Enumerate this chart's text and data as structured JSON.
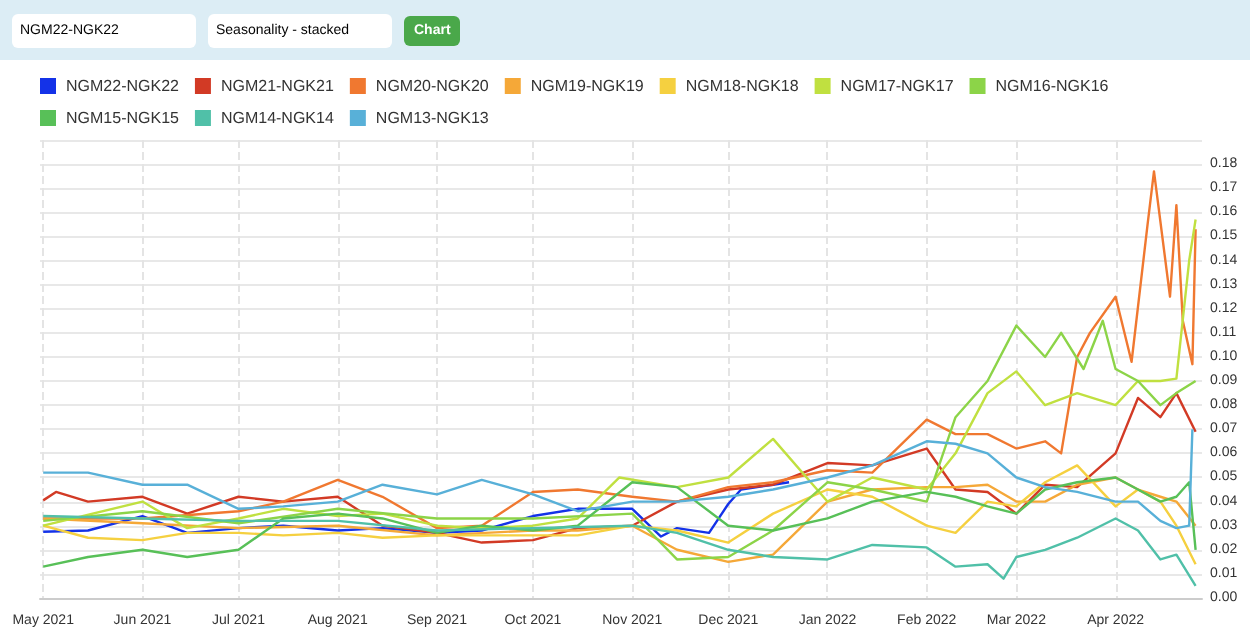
{
  "chart_data": {
    "type": "line",
    "annotations": [
      "NGM22-NGK22",
      "Seasonality - stacked",
      "Chart"
    ],
    "xlim": [
      "2021-04-30",
      "2022-04-28"
    ],
    "xticks": [
      {
        "value": "2021-05-01",
        "label": "May 2021"
      },
      {
        "value": "2021-06-01",
        "label": "Jun 2021"
      },
      {
        "value": "2021-07-01",
        "label": "Jul 2021"
      },
      {
        "value": "2021-08-01",
        "label": "Aug 2021"
      },
      {
        "value": "2021-09-01",
        "label": "Sep 2021"
      },
      {
        "value": "2021-10-01",
        "label": "Oct 2021"
      },
      {
        "value": "2021-11-01",
        "label": "Nov 2021"
      },
      {
        "value": "2021-12-01",
        "label": "Dec 2021"
      },
      {
        "value": "2022-01-01",
        "label": "Jan 2022"
      },
      {
        "value": "2022-02-01",
        "label": "Feb 2022"
      },
      {
        "value": "2022-03-01",
        "label": "Mar 2022"
      },
      {
        "value": "2022-04-01",
        "label": "Apr 2022"
      }
    ],
    "ylim": [
      0,
      0.19
    ],
    "yticks": [
      {
        "value": 0,
        "label": "0.00"
      },
      {
        "value": 0.01,
        "label": "0.01"
      },
      {
        "value": 0.02,
        "label": "0.02"
      },
      {
        "value": 0.03,
        "label": "0.03"
      },
      {
        "value": 0.04,
        "label": "0.04"
      },
      {
        "value": 0.05,
        "label": "0.05"
      },
      {
        "value": 0.06,
        "label": "0.06"
      },
      {
        "value": 0.07,
        "label": "0.07"
      },
      {
        "value": 0.08,
        "label": "0.08"
      },
      {
        "value": 0.09,
        "label": "0.09"
      },
      {
        "value": 0.1,
        "label": "0.10"
      },
      {
        "value": 0.11,
        "label": "0.11"
      },
      {
        "value": 0.12,
        "label": "0.12"
      },
      {
        "value": 0.13,
        "label": "0.13"
      },
      {
        "value": 0.14,
        "label": "0.14"
      },
      {
        "value": 0.15,
        "label": "0.15"
      },
      {
        "value": 0.16,
        "label": "0.16"
      },
      {
        "value": 0.17,
        "label": "0.17"
      },
      {
        "value": 0.18,
        "label": "0.18"
      },
      {
        "value": 0.19,
        "label": null
      }
    ],
    "grid": true,
    "legend": "top",
    "marker": "none",
    "series": [
      {
        "name": "NGM22-NGK22",
        "color": "#1432e8",
        "x": [
          "2021-05-01",
          "2021-05-15",
          "2021-06-01",
          "2021-06-15",
          "2021-07-01",
          "2021-07-15",
          "2021-08-01",
          "2021-08-15",
          "2021-09-01",
          "2021-09-15",
          "2021-10-01",
          "2021-10-15",
          "2021-11-01",
          "2021-11-10",
          "2021-11-15",
          "2021-11-25",
          "2021-12-01",
          "2021-12-05",
          "2021-12-15",
          "2021-12-20"
        ],
        "values": [
          0.0275,
          0.028,
          0.034,
          0.027,
          0.029,
          0.03,
          0.028,
          0.029,
          0.027,
          0.028,
          0.034,
          0.037,
          0.037,
          0.0255,
          0.029,
          0.027,
          0.039,
          0.045,
          0.047,
          0.048
        ]
      },
      {
        "name": "NGM21-NGK21",
        "color": "#d23a25",
        "x": [
          "2021-05-01",
          "2021-05-05",
          "2021-05-15",
          "2021-06-01",
          "2021-06-15",
          "2021-07-01",
          "2021-07-15",
          "2021-08-01",
          "2021-08-15",
          "2021-09-01",
          "2021-09-15",
          "2021-10-01",
          "2021-10-15",
          "2021-11-01",
          "2021-11-15",
          "2021-12-01",
          "2021-12-15",
          "2022-01-01",
          "2022-01-15",
          "2022-02-01",
          "2022-02-10",
          "2022-02-20",
          "2022-03-01",
          "2022-03-10",
          "2022-03-20",
          "2022-04-01",
          "2022-04-08",
          "2022-04-15",
          "2022-04-20",
          "2022-04-26"
        ],
        "values": [
          0.0405,
          0.044,
          0.04,
          0.042,
          0.035,
          0.042,
          0.04,
          0.042,
          0.03,
          0.027,
          0.023,
          0.024,
          0.029,
          0.03,
          0.04,
          0.045,
          0.047,
          0.056,
          0.055,
          0.062,
          0.045,
          0.044,
          0.035,
          0.047,
          0.046,
          0.06,
          0.083,
          0.075,
          0.085,
          0.069
        ]
      },
      {
        "name": "NGM20-NGK20",
        "color": "#f07830",
        "x": [
          "2021-05-01",
          "2021-06-01",
          "2021-07-01",
          "2021-07-15",
          "2021-08-01",
          "2021-08-15",
          "2021-09-01",
          "2021-09-15",
          "2021-10-01",
          "2021-10-15",
          "2021-11-01",
          "2021-11-15",
          "2021-12-01",
          "2021-12-15",
          "2022-01-01",
          "2022-01-15",
          "2022-02-01",
          "2022-02-10",
          "2022-02-20",
          "2022-03-01",
          "2022-03-10",
          "2022-03-15",
          "2022-03-20",
          "2022-03-24",
          "2022-04-01",
          "2022-04-06",
          "2022-04-11",
          "2022-04-13",
          "2022-04-18",
          "2022-04-20",
          "2022-04-22",
          "2022-04-25",
          "2022-04-26"
        ],
        "values": [
          0.033,
          0.033,
          0.036,
          0.04,
          0.049,
          0.042,
          0.029,
          0.03,
          0.044,
          0.045,
          0.042,
          0.04,
          0.046,
          0.048,
          0.053,
          0.052,
          0.074,
          0.068,
          0.068,
          0.062,
          0.065,
          0.06,
          0.1,
          0.11,
          0.125,
          0.098,
          0.155,
          0.177,
          0.125,
          0.163,
          0.115,
          0.097,
          0.153
        ]
      },
      {
        "name": "NGM19-NGK19",
        "color": "#f5a838",
        "x": [
          "2021-05-01",
          "2021-06-01",
          "2021-07-01",
          "2021-08-01",
          "2021-09-01",
          "2021-10-01",
          "2021-10-15",
          "2021-11-01",
          "2021-11-15",
          "2021-12-01",
          "2021-12-15",
          "2022-01-01",
          "2022-01-15",
          "2022-02-01",
          "2022-02-10",
          "2022-02-20",
          "2022-03-01",
          "2022-03-10",
          "2022-03-20",
          "2022-04-01",
          "2022-04-08",
          "2022-04-15",
          "2022-04-20",
          "2022-04-26"
        ],
        "values": [
          0.033,
          0.031,
          0.029,
          0.03,
          0.026,
          0.028,
          0.028,
          0.03,
          0.02,
          0.015,
          0.018,
          0.04,
          0.045,
          0.046,
          0.046,
          0.047,
          0.04,
          0.04,
          0.047,
          0.05,
          0.045,
          0.042,
          0.04,
          0.03
        ]
      },
      {
        "name": "NGM18-NGK18",
        "color": "#f5d040",
        "x": [
          "2021-05-01",
          "2021-05-15",
          "2021-06-01",
          "2021-06-15",
          "2021-07-01",
          "2021-07-15",
          "2021-08-01",
          "2021-08-15",
          "2021-09-01",
          "2021-09-15",
          "2021-10-01",
          "2021-10-15",
          "2021-11-01",
          "2021-11-15",
          "2021-12-01",
          "2021-12-15",
          "2022-01-01",
          "2022-01-15",
          "2022-02-01",
          "2022-02-10",
          "2022-02-20",
          "2022-03-01",
          "2022-03-10",
          "2022-03-20",
          "2022-04-01",
          "2022-04-08",
          "2022-04-15",
          "2022-04-20",
          "2022-04-26"
        ],
        "values": [
          0.03,
          0.025,
          0.024,
          0.027,
          0.027,
          0.026,
          0.027,
          0.025,
          0.026,
          0.026,
          0.026,
          0.026,
          0.03,
          0.028,
          0.023,
          0.035,
          0.045,
          0.042,
          0.03,
          0.027,
          0.04,
          0.038,
          0.048,
          0.055,
          0.038,
          0.045,
          0.04,
          0.03,
          0.014
        ]
      },
      {
        "name": "NGM17-NGK17",
        "color": "#c0e040",
        "x": [
          "2021-05-01",
          "2021-06-01",
          "2021-06-15",
          "2021-07-01",
          "2021-07-15",
          "2021-08-01",
          "2021-08-15",
          "2021-09-01",
          "2021-09-15",
          "2021-10-01",
          "2021-10-15",
          "2021-10-28",
          "2021-11-15",
          "2021-12-01",
          "2021-12-15",
          "2022-01-01",
          "2022-01-15",
          "2022-02-01",
          "2022-02-10",
          "2022-02-20",
          "2022-03-01",
          "2022-03-10",
          "2022-03-20",
          "2022-04-01",
          "2022-04-08",
          "2022-04-15",
          "2022-04-20",
          "2022-04-24",
          "2022-04-26"
        ],
        "values": [
          0.03,
          0.04,
          0.029,
          0.033,
          0.037,
          0.034,
          0.035,
          0.03,
          0.029,
          0.03,
          0.033,
          0.05,
          0.046,
          0.05,
          0.066,
          0.04,
          0.05,
          0.045,
          0.06,
          0.085,
          0.094,
          0.08,
          0.085,
          0.08,
          0.09,
          0.09,
          0.091,
          0.14,
          0.157
        ]
      },
      {
        "name": "NGM16-NGK16",
        "color": "#8cd448",
        "x": [
          "2021-05-01",
          "2021-06-01",
          "2021-07-01",
          "2021-08-01",
          "2021-09-01",
          "2021-10-01",
          "2021-11-01",
          "2021-11-15",
          "2021-12-01",
          "2021-12-15",
          "2022-01-01",
          "2022-01-15",
          "2022-02-01",
          "2022-02-10",
          "2022-02-20",
          "2022-03-01",
          "2022-03-10",
          "2022-03-15",
          "2022-03-22",
          "2022-03-28",
          "2022-04-01",
          "2022-04-08",
          "2022-04-15",
          "2022-04-20",
          "2022-04-26"
        ],
        "values": [
          0.032,
          0.036,
          0.031,
          0.037,
          0.033,
          0.033,
          0.035,
          0.016,
          0.017,
          0.028,
          0.048,
          0.045,
          0.04,
          0.075,
          0.09,
          0.113,
          0.1,
          0.11,
          0.095,
          0.115,
          0.095,
          0.09,
          0.08,
          0.085,
          0.09
        ]
      },
      {
        "name": "NGM15-NGK15",
        "color": "#58c058",
        "x": [
          "2021-05-01",
          "2021-05-15",
          "2021-06-01",
          "2021-06-15",
          "2021-07-01",
          "2021-07-15",
          "2021-08-01",
          "2021-08-15",
          "2021-09-01",
          "2021-09-15",
          "2021-10-01",
          "2021-10-15",
          "2021-11-01",
          "2021-11-15",
          "2021-12-01",
          "2021-12-15",
          "2022-01-01",
          "2022-01-15",
          "2022-02-01",
          "2022-02-10",
          "2022-02-20",
          "2022-03-01",
          "2022-03-10",
          "2022-03-20",
          "2022-04-01",
          "2022-04-08",
          "2022-04-15",
          "2022-04-20",
          "2022-04-24",
          "2022-04-26"
        ],
        "values": [
          0.013,
          0.017,
          0.02,
          0.017,
          0.02,
          0.033,
          0.035,
          0.033,
          0.027,
          0.03,
          0.028,
          0.03,
          0.048,
          0.046,
          0.03,
          0.028,
          0.033,
          0.04,
          0.044,
          0.042,
          0.038,
          0.035,
          0.045,
          0.048,
          0.05,
          0.045,
          0.04,
          0.042,
          0.048,
          0.02
        ]
      },
      {
        "name": "NGM14-NGK14",
        "color": "#50c0a8",
        "x": [
          "2021-05-01",
          "2021-06-01",
          "2021-07-01",
          "2021-08-01",
          "2021-09-01",
          "2021-10-01",
          "2021-11-01",
          "2021-11-15",
          "2021-12-01",
          "2021-12-15",
          "2022-01-01",
          "2022-01-15",
          "2022-02-01",
          "2022-02-10",
          "2022-02-20",
          "2022-02-25",
          "2022-03-01",
          "2022-03-10",
          "2022-03-20",
          "2022-04-01",
          "2022-04-08",
          "2022-04-15",
          "2022-04-20",
          "2022-04-26"
        ],
        "values": [
          0.034,
          0.033,
          0.032,
          0.032,
          0.028,
          0.029,
          0.03,
          0.027,
          0.02,
          0.017,
          0.016,
          0.022,
          0.021,
          0.013,
          0.014,
          0.008,
          0.017,
          0.02,
          0.025,
          0.033,
          0.028,
          0.016,
          0.018,
          0.005
        ]
      },
      {
        "name": "NGM13-NGK13",
        "color": "#58b0d8",
        "x": [
          "2021-05-01",
          "2021-05-15",
          "2021-06-01",
          "2021-06-15",
          "2021-07-01",
          "2021-07-15",
          "2021-08-01",
          "2021-08-15",
          "2021-09-01",
          "2021-09-15",
          "2021-10-01",
          "2021-10-15",
          "2021-11-01",
          "2021-11-15",
          "2021-12-01",
          "2021-12-15",
          "2022-01-01",
          "2022-01-15",
          "2022-02-01",
          "2022-02-10",
          "2022-02-20",
          "2022-03-01",
          "2022-03-10",
          "2022-03-20",
          "2022-04-01",
          "2022-04-08",
          "2022-04-15",
          "2022-04-20",
          "2022-04-24",
          "2022-04-25"
        ],
        "values": [
          0.052,
          0.052,
          0.047,
          0.047,
          0.037,
          0.038,
          0.04,
          0.047,
          0.043,
          0.049,
          0.043,
          0.036,
          0.04,
          0.04,
          0.042,
          0.045,
          0.05,
          0.055,
          0.065,
          0.064,
          0.06,
          0.05,
          0.046,
          0.044,
          0.04,
          0.04,
          0.032,
          0.029,
          0.03,
          0.07
        ]
      }
    ]
  }
}
